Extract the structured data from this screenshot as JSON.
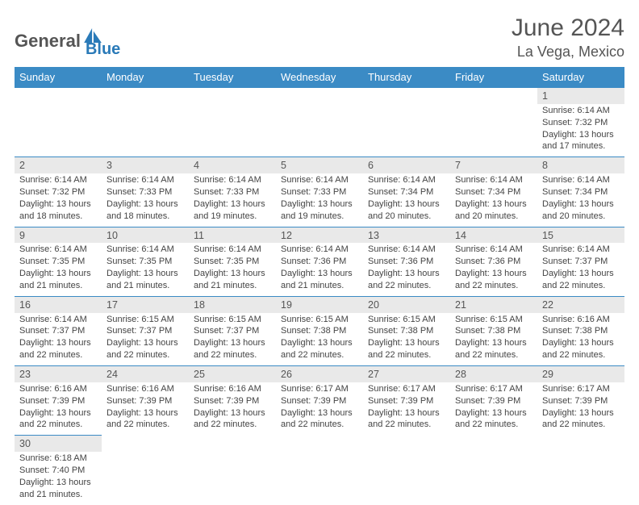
{
  "brand": {
    "part1": "General",
    "part2": "Blue"
  },
  "title": "June 2024",
  "location": "La Vega, Mexico",
  "colors": {
    "header_bg": "#3b8bc5",
    "header_text": "#ffffff",
    "daynum_bg": "#e9e9e9",
    "border": "#3b8bc5",
    "body_text": "#444",
    "title_text": "#555"
  },
  "weekdays": [
    "Sunday",
    "Monday",
    "Tuesday",
    "Wednesday",
    "Thursday",
    "Friday",
    "Saturday"
  ],
  "weeks": [
    {
      "nums": [
        "",
        "",
        "",
        "",
        "",
        "",
        "1"
      ],
      "info": [
        null,
        null,
        null,
        null,
        null,
        null,
        {
          "sr": "Sunrise: 6:14 AM",
          "ss": "Sunset: 7:32 PM",
          "dl": "Daylight: 13 hours and 17 minutes."
        }
      ]
    },
    {
      "nums": [
        "2",
        "3",
        "4",
        "5",
        "6",
        "7",
        "8"
      ],
      "info": [
        {
          "sr": "Sunrise: 6:14 AM",
          "ss": "Sunset: 7:32 PM",
          "dl": "Daylight: 13 hours and 18 minutes."
        },
        {
          "sr": "Sunrise: 6:14 AM",
          "ss": "Sunset: 7:33 PM",
          "dl": "Daylight: 13 hours and 18 minutes."
        },
        {
          "sr": "Sunrise: 6:14 AM",
          "ss": "Sunset: 7:33 PM",
          "dl": "Daylight: 13 hours and 19 minutes."
        },
        {
          "sr": "Sunrise: 6:14 AM",
          "ss": "Sunset: 7:33 PM",
          "dl": "Daylight: 13 hours and 19 minutes."
        },
        {
          "sr": "Sunrise: 6:14 AM",
          "ss": "Sunset: 7:34 PM",
          "dl": "Daylight: 13 hours and 20 minutes."
        },
        {
          "sr": "Sunrise: 6:14 AM",
          "ss": "Sunset: 7:34 PM",
          "dl": "Daylight: 13 hours and 20 minutes."
        },
        {
          "sr": "Sunrise: 6:14 AM",
          "ss": "Sunset: 7:34 PM",
          "dl": "Daylight: 13 hours and 20 minutes."
        }
      ]
    },
    {
      "nums": [
        "9",
        "10",
        "11",
        "12",
        "13",
        "14",
        "15"
      ],
      "info": [
        {
          "sr": "Sunrise: 6:14 AM",
          "ss": "Sunset: 7:35 PM",
          "dl": "Daylight: 13 hours and 21 minutes."
        },
        {
          "sr": "Sunrise: 6:14 AM",
          "ss": "Sunset: 7:35 PM",
          "dl": "Daylight: 13 hours and 21 minutes."
        },
        {
          "sr": "Sunrise: 6:14 AM",
          "ss": "Sunset: 7:35 PM",
          "dl": "Daylight: 13 hours and 21 minutes."
        },
        {
          "sr": "Sunrise: 6:14 AM",
          "ss": "Sunset: 7:36 PM",
          "dl": "Daylight: 13 hours and 21 minutes."
        },
        {
          "sr": "Sunrise: 6:14 AM",
          "ss": "Sunset: 7:36 PM",
          "dl": "Daylight: 13 hours and 22 minutes."
        },
        {
          "sr": "Sunrise: 6:14 AM",
          "ss": "Sunset: 7:36 PM",
          "dl": "Daylight: 13 hours and 22 minutes."
        },
        {
          "sr": "Sunrise: 6:14 AM",
          "ss": "Sunset: 7:37 PM",
          "dl": "Daylight: 13 hours and 22 minutes."
        }
      ]
    },
    {
      "nums": [
        "16",
        "17",
        "18",
        "19",
        "20",
        "21",
        "22"
      ],
      "info": [
        {
          "sr": "Sunrise: 6:14 AM",
          "ss": "Sunset: 7:37 PM",
          "dl": "Daylight: 13 hours and 22 minutes."
        },
        {
          "sr": "Sunrise: 6:15 AM",
          "ss": "Sunset: 7:37 PM",
          "dl": "Daylight: 13 hours and 22 minutes."
        },
        {
          "sr": "Sunrise: 6:15 AM",
          "ss": "Sunset: 7:37 PM",
          "dl": "Daylight: 13 hours and 22 minutes."
        },
        {
          "sr": "Sunrise: 6:15 AM",
          "ss": "Sunset: 7:38 PM",
          "dl": "Daylight: 13 hours and 22 minutes."
        },
        {
          "sr": "Sunrise: 6:15 AM",
          "ss": "Sunset: 7:38 PM",
          "dl": "Daylight: 13 hours and 22 minutes."
        },
        {
          "sr": "Sunrise: 6:15 AM",
          "ss": "Sunset: 7:38 PM",
          "dl": "Daylight: 13 hours and 22 minutes."
        },
        {
          "sr": "Sunrise: 6:16 AM",
          "ss": "Sunset: 7:38 PM",
          "dl": "Daylight: 13 hours and 22 minutes."
        }
      ]
    },
    {
      "nums": [
        "23",
        "24",
        "25",
        "26",
        "27",
        "28",
        "29"
      ],
      "info": [
        {
          "sr": "Sunrise: 6:16 AM",
          "ss": "Sunset: 7:39 PM",
          "dl": "Daylight: 13 hours and 22 minutes."
        },
        {
          "sr": "Sunrise: 6:16 AM",
          "ss": "Sunset: 7:39 PM",
          "dl": "Daylight: 13 hours and 22 minutes."
        },
        {
          "sr": "Sunrise: 6:16 AM",
          "ss": "Sunset: 7:39 PM",
          "dl": "Daylight: 13 hours and 22 minutes."
        },
        {
          "sr": "Sunrise: 6:17 AM",
          "ss": "Sunset: 7:39 PM",
          "dl": "Daylight: 13 hours and 22 minutes."
        },
        {
          "sr": "Sunrise: 6:17 AM",
          "ss": "Sunset: 7:39 PM",
          "dl": "Daylight: 13 hours and 22 minutes."
        },
        {
          "sr": "Sunrise: 6:17 AM",
          "ss": "Sunset: 7:39 PM",
          "dl": "Daylight: 13 hours and 22 minutes."
        },
        {
          "sr": "Sunrise: 6:17 AM",
          "ss": "Sunset: 7:39 PM",
          "dl": "Daylight: 13 hours and 22 minutes."
        }
      ]
    },
    {
      "nums": [
        "30",
        "",
        "",
        "",
        "",
        "",
        ""
      ],
      "info": [
        {
          "sr": "Sunrise: 6:18 AM",
          "ss": "Sunset: 7:40 PM",
          "dl": "Daylight: 13 hours and 21 minutes."
        },
        null,
        null,
        null,
        null,
        null,
        null
      ]
    }
  ]
}
